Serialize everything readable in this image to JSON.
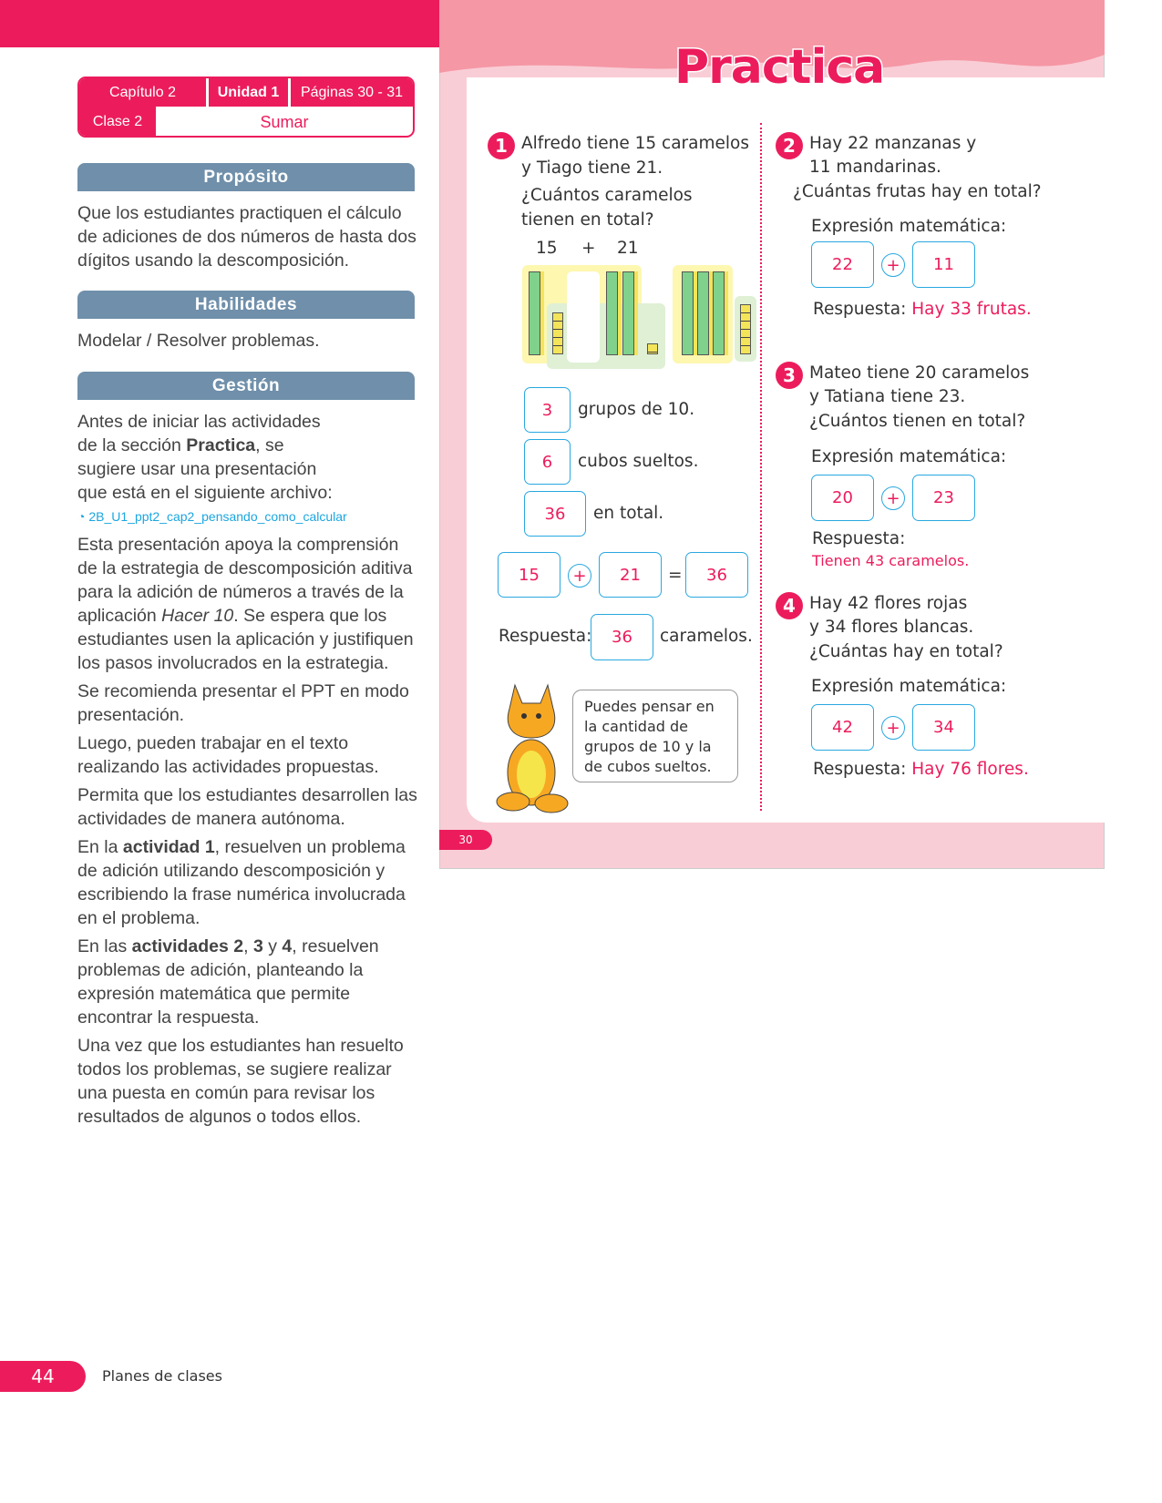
{
  "header": {
    "chapter": "Capítulo 2",
    "unit": "Unidad 1",
    "pages": "Páginas 30 - 31",
    "class": "Clase 2",
    "topic": "Sumar"
  },
  "proposito": {
    "title": "Propósito",
    "text": "Que los estudiantes practiquen el cálculo de adiciones de dos números de hasta dos dígitos usando la descomposición."
  },
  "habilidades": {
    "title": "Habilidades",
    "text": "Modelar / Resolver problemas."
  },
  "gestion": {
    "title": "Gestión",
    "p1a": "Antes de iniciar las actividades de la sección ",
    "p1b": "Practica",
    "p1c": ", se sugiere usar una presentación que está en el siguiente archivo:",
    "file": "2B_U1_ppt2_cap2_pensando_como_calcular",
    "p2a": "Esta presentación apoya la comprensión de la estrategia de descomposición aditiva para la adición de números a través de la aplicación ",
    "p2b": "Hacer 10",
    "p2c": ". Se espera que los estudiantes usen la aplicación y justifiquen los pasos involucrados en la estrategia.",
    "p3": "Se recomienda presentar el PPT en modo presentación.",
    "p4": "Luego, pueden trabajar en el texto realizando las actividades propuestas.",
    "p5": "Permita que los estudiantes desarrollen las actividades de manera autónoma.",
    "p6a": "En la ",
    "p6b": "actividad 1",
    "p6c": ", resuelven un problema de adición utilizando descomposición y escribiendo la frase numérica involucrada en el problema.",
    "p7a": "En las ",
    "p7b": "actividades 2",
    "p7c": ", ",
    "p7d": "3",
    "p7e": " y ",
    "p7f": "4",
    "p7g": ",  resuelven problemas de adición, planteando la expresión matemática que permite encontrar la respuesta.",
    "p8": "Una vez que los estudiantes han resuelto todos los problemas, se sugiere realizar una puesta en común para revisar los resultados de algunos o todos ellos."
  },
  "practica": {
    "title": "Practica",
    "q1": {
      "n": "1",
      "text": "Alfredo tiene 15 caramelos y Tiago tiene 21.",
      "question": "¿Cuántos caramelos tienen en total?",
      "a": "15",
      "op": "+",
      "b": "21",
      "groups": "3",
      "groups_label": "grupos de 10.",
      "loose": "6",
      "loose_label": "cubos sueltos.",
      "total": "36",
      "total_label": "en total.",
      "eq_a": "15",
      "eq_plus": "+",
      "eq_b": "21",
      "eq_eq": "=",
      "eq_r": "36",
      "resp_label": "Respuesta:",
      "resp": "36",
      "resp_unit": "caramelos."
    },
    "q2": {
      "n": "2",
      "l1": "Hay 22 manzanas y",
      "l2": "11 mandarinas.",
      "l3": "¿Cuántas frutas hay en total?",
      "expr": "Expresión matemática:",
      "a": "22",
      "b": "11",
      "resp_label": "Respuesta:",
      "resp": "Hay 33 frutas."
    },
    "q3": {
      "n": "3",
      "l1": "Mateo tiene 20 caramelos",
      "l2": "y Tatiana tiene 23.",
      "l3": "¿Cuántos tienen en total?",
      "expr": "Expresión matemática:",
      "a": "20",
      "b": "23",
      "resp_label": "Respuesta:",
      "resp": "Tienen 43 caramelos."
    },
    "q4": {
      "n": "4",
      "l1": "Hay 42 flores rojas",
      "l2": "y 34 flores blancas.",
      "l3": "¿Cuántas hay en total?",
      "expr": "Expresión matemática:",
      "a": "42",
      "b": "34",
      "resp_label": "Respuesta:",
      "resp": "Hay 76 flores."
    },
    "bubble": "Puedes pensar en la cantidad de grupos de 10 y la de cubos sueltos.",
    "page": "30"
  },
  "footer": {
    "page": "44",
    "label": "Planes de clases"
  },
  "colors": {
    "accent": "#ec1c5c",
    "section": "#6f8faa",
    "box": "#29a8e0"
  }
}
